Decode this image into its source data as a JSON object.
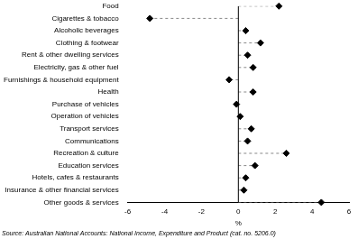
{
  "chart_data": {
    "type": "dot",
    "orientation": "horizontal",
    "categories": [
      "Food",
      "Cigarettes & tobacco",
      "Alcoholic beverages",
      "Clothing & footwear",
      "Rent & other dwelling services",
      "Electricity, gas & other fuel",
      "Furnishings & household equipment",
      "Health",
      "Purchase of vehicles",
      "Operation of vehicles",
      "Transport services",
      "Communications",
      "Recreation & culture",
      "Education services",
      "Hotels, cafes & restaurants",
      "Insurance & other financial services",
      "Other goods & services"
    ],
    "values": [
      2.2,
      -4.8,
      0.4,
      1.2,
      0.5,
      0.8,
      -0.5,
      0.8,
      -0.1,
      0.1,
      0.7,
      0.5,
      2.6,
      0.9,
      0.4,
      0.3,
      4.5
    ],
    "color": "#000000",
    "marker": "diamond",
    "line_style": "dashed",
    "xlim": [
      -6,
      6
    ],
    "xticks": [
      -6,
      -4,
      -2,
      0,
      2,
      4,
      6
    ],
    "x_label": "%",
    "grid": false,
    "source": "Source: Australian National Accounts: National Income, Expenditure and Product (cat. no. 5206.0)"
  }
}
